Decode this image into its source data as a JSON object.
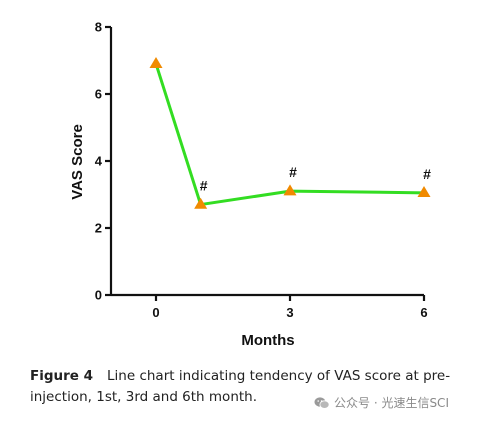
{
  "chart_data": {
    "type": "line",
    "title": "",
    "xlabel": "Months",
    "ylabel": "VAS Score",
    "ylim": [
      0,
      8
    ],
    "yticks": [
      0,
      2,
      4,
      6,
      8
    ],
    "xticks": [
      0,
      3,
      6
    ],
    "series": [
      {
        "x": [
          0,
          1,
          3,
          6
        ],
        "values": [
          6.9,
          2.7,
          3.1,
          3.05
        ],
        "line_color": "#33dd22",
        "marker": "triangle",
        "marker_color": "#f08a00"
      }
    ],
    "annotations": [
      {
        "x": 1,
        "text": "#"
      },
      {
        "x": 3,
        "text": "#"
      },
      {
        "x": 6,
        "text": "#"
      }
    ],
    "grid": false,
    "legend": "none"
  },
  "caption": {
    "label": "Figure 4",
    "text": "Line chart indicating tendency of VAS score at pre-injection, 1st, 3rd and 6th month."
  },
  "watermark": {
    "text": "公众号 · 光速生信SCI",
    "icon": "wechat-icon"
  }
}
